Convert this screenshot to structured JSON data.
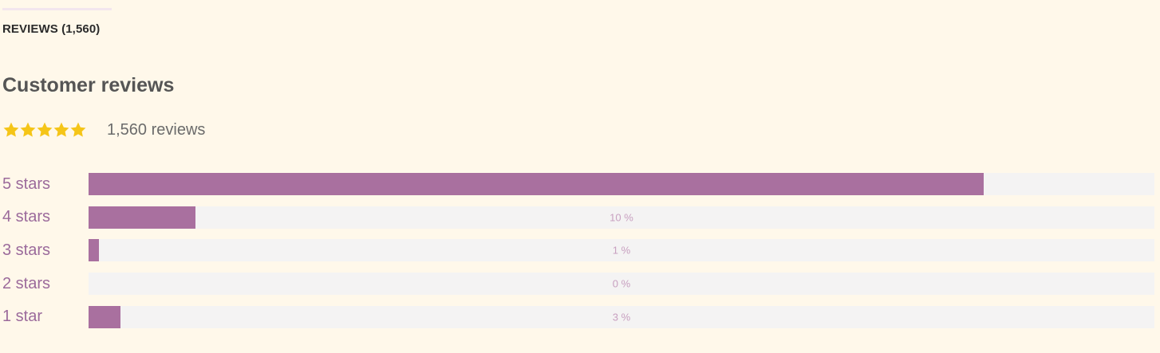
{
  "tab": {
    "label": "REVIEWS (1,560)"
  },
  "title": "Customer reviews",
  "summary": {
    "rating": 5,
    "star_color": "#f5c518",
    "count_text": "1,560 reviews"
  },
  "colors": {
    "fill": "#a9709f",
    "track": "#f4f3f3"
  },
  "breakdown": [
    {
      "label": "5 stars",
      "percent": 84,
      "percent_text": ""
    },
    {
      "label": "4 stars",
      "percent": 10,
      "percent_text": "10 %"
    },
    {
      "label": "3 stars",
      "percent": 1,
      "percent_text": "1 %"
    },
    {
      "label": "2 stars",
      "percent": 0,
      "percent_text": "0 %"
    },
    {
      "label": "1 star",
      "percent": 3,
      "percent_text": "3 %"
    }
  ]
}
